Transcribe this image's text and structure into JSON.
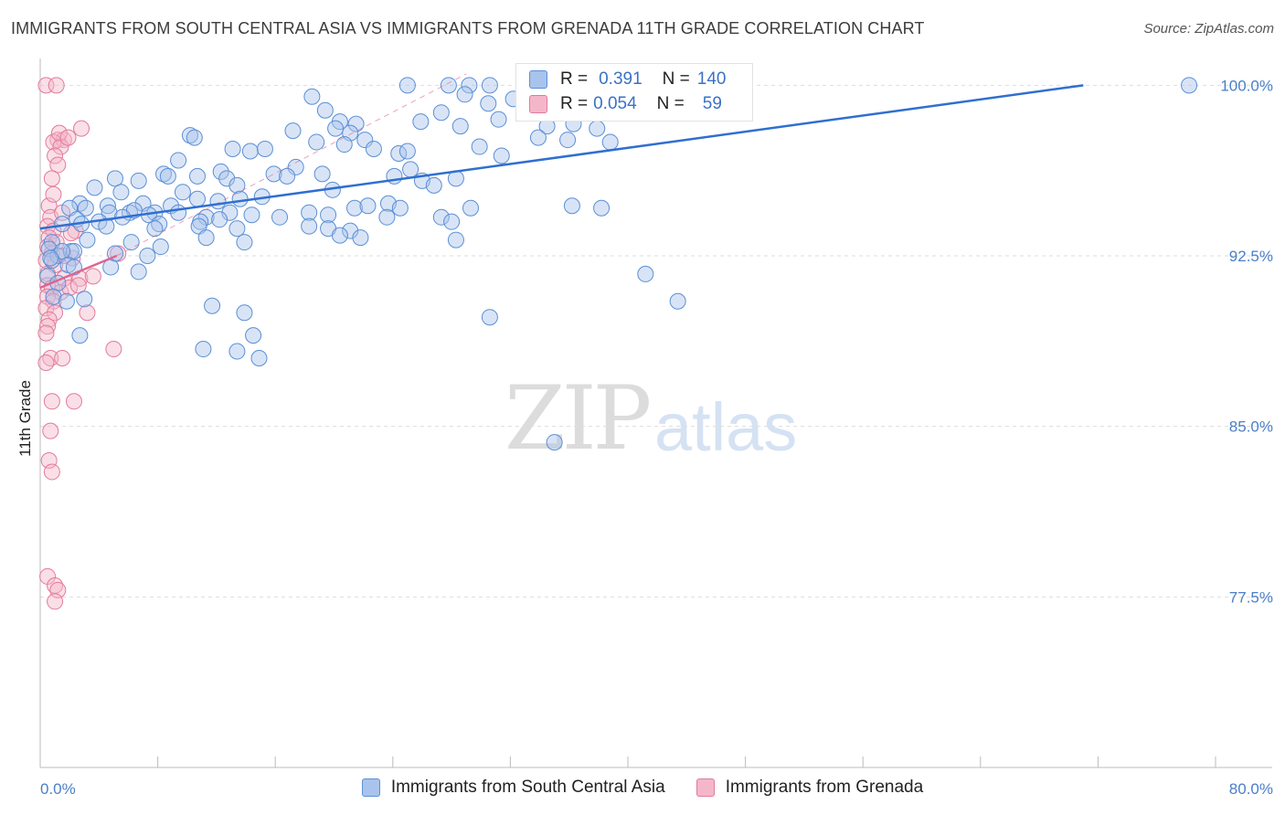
{
  "header": {
    "title": "IMMIGRANTS FROM SOUTH CENTRAL ASIA VS IMMIGRANTS FROM GRENADA 11TH GRADE CORRELATION CHART",
    "source": "Source: ZipAtlas.com"
  },
  "watermark": {
    "zip": "ZIP",
    "atlas": "atlas"
  },
  "legend": {
    "blue": {
      "r_label": "R =",
      "r_value": "0.391",
      "n_label": "N =",
      "n_value": "140"
    },
    "pink": {
      "r_label": "R =",
      "r_value": "0.054",
      "n_label": "N =",
      "n_value": "59"
    }
  },
  "colors": {
    "blue_fill": "#a8c4ec",
    "blue_stroke": "#5b8fd6",
    "blue_line": "#2f6fd0",
    "pink_fill": "#f4b7ca",
    "pink_stroke": "#e27a9c",
    "pink_line": "#e0648f",
    "grid": "#dddddd",
    "tick_text": "#4a7fc8"
  },
  "chart_data": {
    "type": "scatter",
    "title": "IMMIGRANTS FROM SOUTH CENTRAL ASIA VS IMMIGRANTS FROM GRENADA 11TH GRADE CORRELATION CHART",
    "xlabel": "",
    "ylabel": "11th Grade",
    "xlim": [
      0,
      80
    ],
    "ylim": [
      70,
      101.5
    ],
    "x_tick_labels": [
      "0.0%",
      "80.0%"
    ],
    "y_ticks": [
      77.5,
      85.0,
      92.5,
      100.0
    ],
    "y_tick_labels": [
      "77.5%",
      "85.0%",
      "92.5%",
      "100.0%"
    ],
    "grid": true,
    "legend_position": "bottom",
    "series": [
      {
        "name": "Immigrants from South Central Asia",
        "color": "#5b8fd6",
        "trend": {
          "x": [
            0,
            71
          ],
          "y": [
            93.7,
            100.0
          ]
        },
        "points": [
          [
            25,
            100
          ],
          [
            27.8,
            100
          ],
          [
            29.2,
            100
          ],
          [
            30.6,
            100
          ],
          [
            78.2,
            100
          ],
          [
            18.5,
            99.5
          ],
          [
            28.9,
            99.6
          ],
          [
            30.5,
            99.2
          ],
          [
            32.2,
            99.4
          ],
          [
            34.8,
            99.3
          ],
          [
            27.3,
            98.8
          ],
          [
            19.4,
            98.9
          ],
          [
            20.4,
            98.4
          ],
          [
            25.9,
            98.4
          ],
          [
            28.6,
            98.2
          ],
          [
            31.2,
            98.5
          ],
          [
            34.5,
            98.2
          ],
          [
            36.3,
            98.3
          ],
          [
            37.9,
            98.1
          ],
          [
            17.2,
            98.0
          ],
          [
            20.1,
            98.1
          ],
          [
            21.5,
            98.3
          ],
          [
            21.1,
            97.9
          ],
          [
            22.1,
            97.6
          ],
          [
            33.9,
            97.7
          ],
          [
            35.9,
            97.6
          ],
          [
            38.8,
            97.5
          ],
          [
            10.2,
            97.8
          ],
          [
            10.5,
            97.7
          ],
          [
            18.8,
            97.5
          ],
          [
            20.7,
            97.4
          ],
          [
            22.7,
            97.2
          ],
          [
            13.1,
            97.2
          ],
          [
            14.3,
            97.1
          ],
          [
            15.3,
            97.2
          ],
          [
            24.4,
            97.0
          ],
          [
            25.0,
            97.1
          ],
          [
            29.9,
            97.3
          ],
          [
            31.4,
            96.9
          ],
          [
            9.4,
            96.7
          ],
          [
            17.4,
            96.4
          ],
          [
            8.4,
            96.1
          ],
          [
            10.7,
            96.0
          ],
          [
            12.3,
            96.2
          ],
          [
            15.9,
            96.1
          ],
          [
            16.8,
            96.0
          ],
          [
            19.2,
            96.1
          ],
          [
            24.1,
            96.0
          ],
          [
            25.2,
            96.3
          ],
          [
            5.1,
            95.9
          ],
          [
            6.7,
            95.8
          ],
          [
            8.7,
            96.0
          ],
          [
            12.7,
            95.9
          ],
          [
            13.4,
            95.6
          ],
          [
            26.0,
            95.8
          ],
          [
            26.8,
            95.6
          ],
          [
            28.3,
            95.9
          ],
          [
            19.9,
            95.4
          ],
          [
            3.7,
            95.5
          ],
          [
            5.5,
            95.3
          ],
          [
            9.7,
            95.3
          ],
          [
            10.7,
            95.0
          ],
          [
            12.1,
            94.9
          ],
          [
            13.6,
            95.0
          ],
          [
            15.1,
            95.1
          ],
          [
            23.7,
            94.8
          ],
          [
            24.5,
            94.6
          ],
          [
            21.4,
            94.6
          ],
          [
            22.3,
            94.7
          ],
          [
            29.3,
            94.6
          ],
          [
            2.7,
            94.8
          ],
          [
            4.6,
            94.7
          ],
          [
            7.0,
            94.8
          ],
          [
            8.9,
            94.7
          ],
          [
            36.2,
            94.7
          ],
          [
            38.2,
            94.6
          ],
          [
            18.3,
            94.4
          ],
          [
            2.0,
            94.6
          ],
          [
            3.1,
            94.6
          ],
          [
            4.7,
            94.4
          ],
          [
            6.1,
            94.4
          ],
          [
            6.4,
            94.5
          ],
          [
            7.8,
            94.4
          ],
          [
            9.4,
            94.4
          ],
          [
            11.3,
            94.2
          ],
          [
            12.9,
            94.4
          ],
          [
            14.4,
            94.3
          ],
          [
            16.3,
            94.2
          ],
          [
            19.6,
            94.3
          ],
          [
            23.6,
            94.2
          ],
          [
            27.3,
            94.2
          ],
          [
            28.0,
            94.0
          ],
          [
            2.5,
            94.1
          ],
          [
            4.0,
            94.0
          ],
          [
            5.6,
            94.2
          ],
          [
            7.4,
            94.3
          ],
          [
            8.1,
            93.9
          ],
          [
            10.9,
            94.0
          ],
          [
            12.2,
            94.1
          ],
          [
            1.5,
            93.9
          ],
          [
            2.8,
            93.9
          ],
          [
            4.5,
            93.8
          ],
          [
            7.8,
            93.7
          ],
          [
            10.8,
            93.8
          ],
          [
            13.4,
            93.7
          ],
          [
            18.3,
            93.8
          ],
          [
            19.6,
            93.7
          ],
          [
            21.1,
            93.6
          ],
          [
            3.2,
            93.2
          ],
          [
            0.8,
            93.1
          ],
          [
            6.2,
            93.1
          ],
          [
            8.2,
            92.9
          ],
          [
            11.3,
            93.3
          ],
          [
            13.9,
            93.1
          ],
          [
            20.4,
            93.4
          ],
          [
            21.8,
            93.3
          ],
          [
            28.3,
            93.2
          ],
          [
            0.6,
            92.8
          ],
          [
            1.2,
            92.5
          ],
          [
            2.1,
            92.7
          ],
          [
            0.8,
            92.3
          ],
          [
            2.3,
            92.7
          ],
          [
            5.1,
            92.6
          ],
          [
            7.3,
            92.5
          ],
          [
            1.5,
            92.7
          ],
          [
            0.7,
            92.4
          ],
          [
            1.9,
            92.1
          ],
          [
            4.8,
            92.0
          ],
          [
            6.7,
            91.8
          ],
          [
            2.3,
            92.0
          ],
          [
            0.5,
            91.6
          ],
          [
            1.2,
            91.3
          ],
          [
            41.2,
            91.7
          ],
          [
            0.9,
            90.7
          ],
          [
            1.8,
            90.5
          ],
          [
            3.0,
            90.6
          ],
          [
            11.7,
            90.3
          ],
          [
            13.9,
            90.0
          ],
          [
            43.4,
            90.5
          ],
          [
            2.7,
            89.0
          ],
          [
            11.1,
            88.4
          ],
          [
            13.4,
            88.3
          ],
          [
            14.5,
            89.0
          ],
          [
            30.6,
            89.8
          ],
          [
            14.9,
            88.0
          ],
          [
            35.0,
            84.3
          ]
        ]
      },
      {
        "name": "Immigrants from Grenada",
        "color": "#e27a9c",
        "trend": {
          "x": [
            0,
            5.2
          ],
          "y": [
            91.1,
            92.5
          ]
        },
        "points": [
          [
            0.4,
            100
          ],
          [
            1.1,
            100
          ],
          [
            2.8,
            98.1
          ],
          [
            1.2,
            97.6
          ],
          [
            1.6,
            97.6
          ],
          [
            0.9,
            97.5
          ],
          [
            1.4,
            97.3
          ],
          [
            1.0,
            96.9
          ],
          [
            1.2,
            96.5
          ],
          [
            0.8,
            95.9
          ],
          [
            0.6,
            94.7
          ],
          [
            0.7,
            94.2
          ],
          [
            0.5,
            93.8
          ],
          [
            0.9,
            93.6
          ],
          [
            2.4,
            93.6
          ],
          [
            0.6,
            93.3
          ],
          [
            1.1,
            93.1
          ],
          [
            0.5,
            92.9
          ],
          [
            0.8,
            92.6
          ],
          [
            0.4,
            92.3
          ],
          [
            1.0,
            92.1
          ],
          [
            0.5,
            91.7
          ],
          [
            5.3,
            92.6
          ],
          [
            1.6,
            91.5
          ],
          [
            2.7,
            91.5
          ],
          [
            0.5,
            91.2
          ],
          [
            0.8,
            91.1
          ],
          [
            1.4,
            90.9
          ],
          [
            2.0,
            91.1
          ],
          [
            2.6,
            91.2
          ],
          [
            0.5,
            90.7
          ],
          [
            0.9,
            90.5
          ],
          [
            0.4,
            90.2
          ],
          [
            1.0,
            90.0
          ],
          [
            3.2,
            90.0
          ],
          [
            0.6,
            89.7
          ],
          [
            0.5,
            89.4
          ],
          [
            0.4,
            89.1
          ],
          [
            5.0,
            88.4
          ],
          [
            0.7,
            88.0
          ],
          [
            1.5,
            88.0
          ],
          [
            0.4,
            87.8
          ],
          [
            0.8,
            86.1
          ],
          [
            2.3,
            86.1
          ],
          [
            0.7,
            84.8
          ],
          [
            0.6,
            83.5
          ],
          [
            0.8,
            83.0
          ],
          [
            0.5,
            78.4
          ],
          [
            1.0,
            78.0
          ],
          [
            1.2,
            77.8
          ],
          [
            1.0,
            77.3
          ],
          [
            1.3,
            97.9
          ],
          [
            1.9,
            97.7
          ],
          [
            0.9,
            95.2
          ],
          [
            1.5,
            94.4
          ],
          [
            2.1,
            93.5
          ],
          [
            1.6,
            92.5
          ],
          [
            2.2,
            92.4
          ],
          [
            3.6,
            91.6
          ]
        ]
      }
    ]
  },
  "bottom_legend": {
    "blue_label": "Immigrants from South Central Asia",
    "pink_label": "Immigrants from Grenada"
  }
}
